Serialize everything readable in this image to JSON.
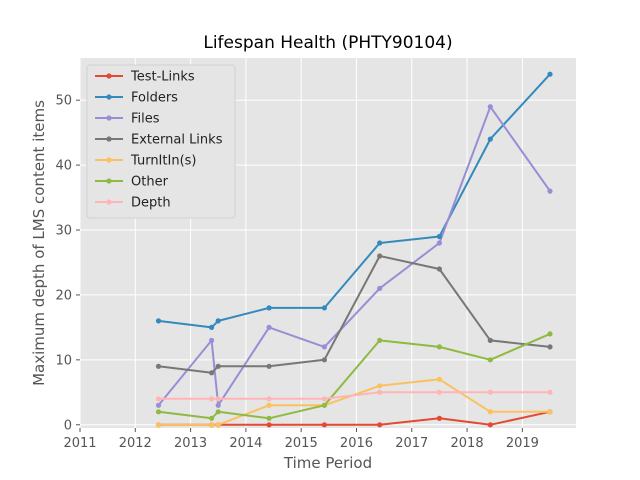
{
  "chart_data": {
    "type": "line",
    "title": "Lifespan Health (PHTY90104)",
    "xlabel": "Time Period",
    "ylabel": "Maximum depth of LMS content items",
    "xlim": [
      2011,
      2019.97
    ],
    "ylim": [
      -0.5,
      56.5
    ],
    "xticks": [
      2011,
      2012,
      2013,
      2014,
      2015,
      2016,
      2017,
      2018,
      2019
    ],
    "xtick_labels": [
      "2011",
      "2012",
      "2013",
      "2014",
      "2015",
      "2016",
      "2017",
      "2018",
      "2019"
    ],
    "yticks": [
      0,
      10,
      20,
      30,
      40,
      50
    ],
    "ytick_labels": [
      "0",
      "10",
      "20",
      "30",
      "40",
      "50"
    ],
    "grid": true,
    "legend_position": "top-left",
    "x": [
      2012.42,
      2013.38,
      2013.5,
      2014.42,
      2015.42,
      2016.42,
      2017.5,
      2018.42,
      2019.5
    ],
    "series": [
      {
        "name": "Test-Links",
        "color": "#E24A33",
        "values": [
          0,
          0,
          0,
          0,
          0,
          0,
          1,
          0,
          2
        ]
      },
      {
        "name": "Folders",
        "color": "#348ABD",
        "values": [
          16,
          15,
          16,
          18,
          18,
          28,
          29,
          44,
          54
        ]
      },
      {
        "name": "Files",
        "color": "#988ED5",
        "values": [
          3,
          13,
          3,
          15,
          12,
          21,
          28,
          49,
          36
        ]
      },
      {
        "name": "External Links",
        "color": "#777777",
        "values": [
          9,
          8,
          9,
          9,
          10,
          26,
          24,
          13,
          12
        ]
      },
      {
        "name": "TurnItIn(s)",
        "color": "#FBC15E",
        "values": [
          0,
          0,
          0,
          3,
          3,
          6,
          7,
          2,
          2
        ]
      },
      {
        "name": "Other",
        "color": "#8EBA42",
        "values": [
          2,
          1,
          2,
          1,
          3,
          13,
          12,
          10,
          14
        ]
      },
      {
        "name": "Depth",
        "color": "#FFB5B8",
        "values": [
          4,
          4,
          4,
          4,
          4,
          5,
          5,
          5,
          5
        ]
      }
    ]
  }
}
